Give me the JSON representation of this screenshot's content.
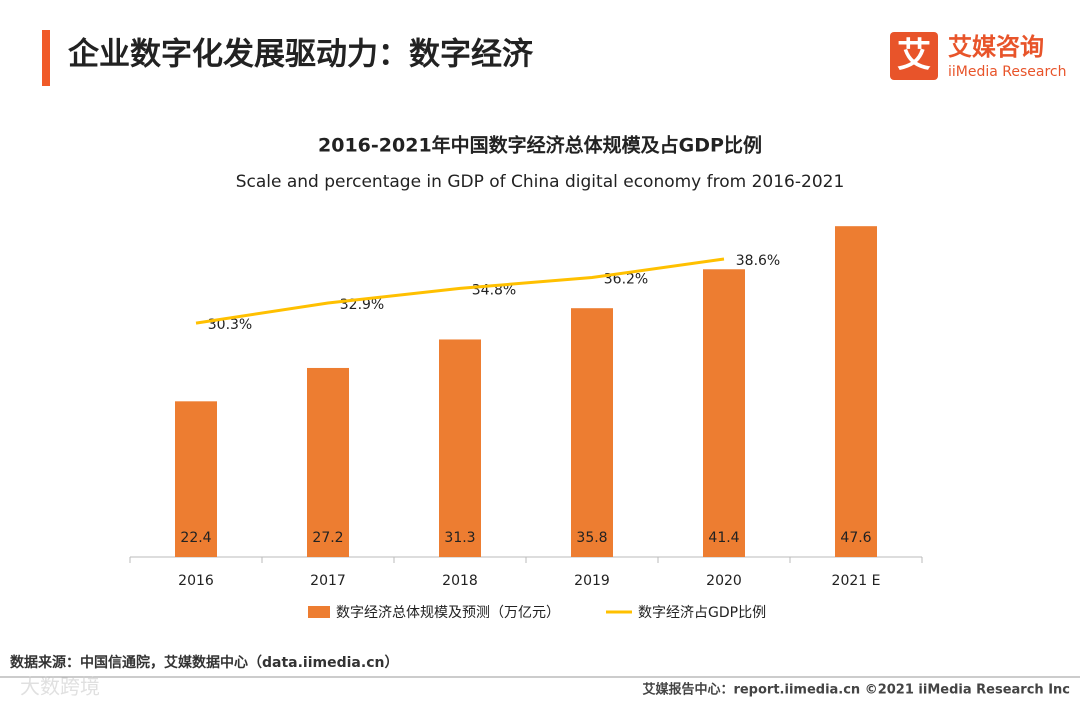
{
  "header": {
    "title": "企业数字化发展驱动力：数字经济"
  },
  "logo": {
    "mark": "艾",
    "name": "艾媒咨询",
    "name_en": "iiMedia Research"
  },
  "chart_data": {
    "type": "bar",
    "title": "2016-2021年中国数字经济总体规模及占GDP比例",
    "subtitle": "Scale and percentage in GDP of China digital economy from 2016-2021",
    "categories": [
      "2016",
      "2017",
      "2018",
      "2019",
      "2020",
      "2021 E"
    ],
    "series": [
      {
        "name": "数字经济总体规模及预测（万亿元）",
        "type": "bar",
        "color": "#ed7d31",
        "values": [
          22.4,
          27.2,
          31.3,
          35.8,
          41.4,
          47.6
        ]
      },
      {
        "name": "数字经济占GDP比例",
        "type": "line",
        "color": "#ffc000",
        "values": [
          30.3,
          32.9,
          34.8,
          36.2,
          38.6,
          null
        ],
        "value_labels": [
          "30.3%",
          "32.9%",
          "34.8%",
          "36.2%",
          "38.6%",
          null
        ]
      }
    ]
  },
  "footer": {
    "source": "数据来源：中国信通院，艾媒数据中心（data.iimedia.cn）",
    "credit": "艾媒报告中心：report.iimedia.cn  ©2021  iiMedia Research  Inc",
    "watermark": "大数跨境"
  }
}
